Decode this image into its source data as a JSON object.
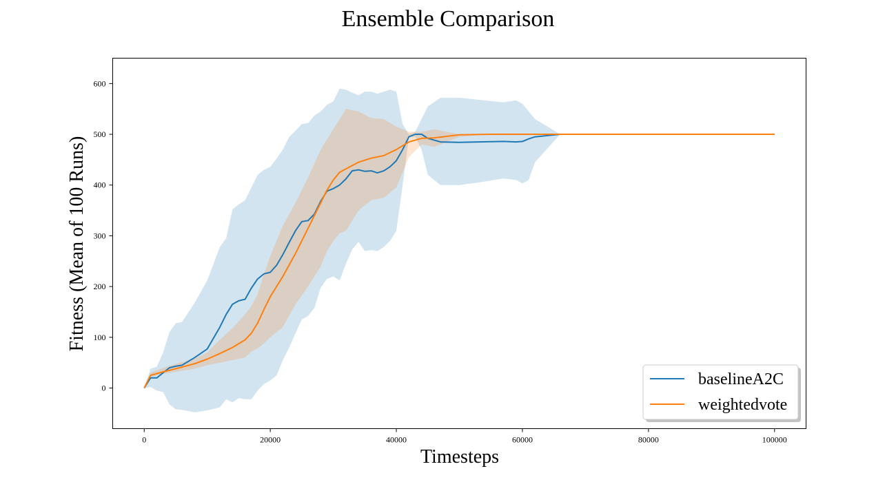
{
  "chart_data": {
    "type": "line",
    "title": "Ensemble Comparison",
    "xlabel": "Timesteps",
    "ylabel": "Fitness (Mean of 100 Runs)",
    "xlim": [
      -5000,
      105000
    ],
    "ylim": [
      -80,
      650
    ],
    "xticks": [
      0,
      20000,
      40000,
      60000,
      80000,
      100000
    ],
    "xtick_labels": [
      "0",
      "20000",
      "40000",
      "60000",
      "80000",
      "100000"
    ],
    "yticks": [
      0,
      100,
      200,
      300,
      400,
      500,
      600
    ],
    "ytick_labels": [
      "0",
      "100",
      "200",
      "300",
      "400",
      "500",
      "600"
    ],
    "grid": false,
    "legend_position": "bottom-right",
    "series": [
      {
        "name": "baselineA2C",
        "color": "#1f77b4",
        "band_color": "#1f77b4",
        "x": [
          0,
          1000,
          2000,
          3000,
          4000,
          5000,
          6000,
          8000,
          10000,
          12000,
          13000,
          14000,
          15000,
          16000,
          17000,
          18000,
          19000,
          20000,
          21000,
          22000,
          23000,
          24000,
          25000,
          26000,
          27000,
          28000,
          29000,
          30000,
          31000,
          32000,
          33000,
          34000,
          35000,
          36000,
          37000,
          38000,
          39000,
          40000,
          41000,
          42000,
          43000,
          44000,
          45000,
          47000,
          50000,
          53000,
          57000,
          59000,
          60000,
          61000,
          62000,
          66000,
          70000,
          80000,
          90000,
          100000
        ],
        "values": [
          0,
          20,
          20,
          30,
          40,
          43,
          45,
          60,
          77,
          120,
          145,
          165,
          172,
          175,
          197,
          215,
          225,
          228,
          242,
          263,
          287,
          310,
          328,
          330,
          343,
          368,
          388,
          393,
          400,
          412,
          428,
          430,
          427,
          428,
          424,
          428,
          436,
          448,
          470,
          495,
          500,
          500,
          492,
          485,
          484,
          485,
          486,
          485,
          486,
          491,
          495,
          500,
          500,
          500,
          500,
          500
        ],
        "upper": [
          0,
          38,
          42,
          70,
          110,
          128,
          130,
          168,
          212,
          278,
          295,
          352,
          362,
          370,
          395,
          420,
          430,
          436,
          452,
          470,
          495,
          507,
          520,
          522,
          537,
          545,
          558,
          565,
          590,
          588,
          582,
          577,
          584,
          584,
          580,
          584,
          588,
          584,
          520,
          500,
          505,
          530,
          555,
          572,
          572,
          568,
          563,
          567,
          560,
          545,
          530,
          500,
          500,
          500,
          500,
          500
        ],
        "lower": [
          0,
          2,
          -5,
          -8,
          -32,
          -42,
          -43,
          -48,
          -44,
          -38,
          -22,
          -28,
          -20,
          -22,
          -22,
          -5,
          8,
          15,
          25,
          55,
          80,
          108,
          135,
          142,
          158,
          198,
          215,
          220,
          212,
          245,
          273,
          288,
          270,
          272,
          270,
          278,
          290,
          310,
          400,
          495,
          495,
          470,
          420,
          400,
          400,
          405,
          413,
          410,
          403,
          410,
          445,
          500,
          500,
          500,
          500,
          500
        ]
      },
      {
        "name": "weightedvote",
        "color": "#ff7f0e",
        "band_color": "#ff7f0e",
        "x": [
          0,
          1000,
          3000,
          5000,
          8000,
          10000,
          12000,
          14000,
          16000,
          17000,
          18000,
          19000,
          20000,
          22000,
          24000,
          26000,
          28000,
          29000,
          30000,
          31000,
          32000,
          34000,
          36000,
          38000,
          40000,
          42000,
          44000,
          46000,
          48000,
          50000,
          55000,
          60000,
          66000,
          70000,
          80000,
          90000,
          100000
        ],
        "values": [
          0,
          25,
          32,
          38,
          48,
          57,
          68,
          80,
          95,
          108,
          128,
          155,
          180,
          220,
          265,
          315,
          365,
          390,
          410,
          425,
          432,
          445,
          453,
          458,
          470,
          485,
          492,
          493,
          496,
          499,
          500,
          500,
          500,
          500,
          500,
          500,
          500
        ],
        "upper": [
          0,
          30,
          40,
          48,
          58,
          70,
          95,
          118,
          145,
          162,
          185,
          225,
          260,
          320,
          365,
          415,
          470,
          490,
          510,
          530,
          550,
          545,
          532,
          530,
          515,
          505,
          505,
          510,
          505,
          500,
          500,
          500,
          500,
          500,
          500,
          500,
          500
        ],
        "lower": [
          0,
          22,
          28,
          32,
          38,
          45,
          50,
          55,
          60,
          72,
          78,
          88,
          100,
          120,
          165,
          200,
          240,
          270,
          290,
          305,
          310,
          350,
          370,
          375,
          395,
          455,
          480,
          475,
          485,
          495,
          500,
          500,
          500,
          500,
          500,
          500,
          500
        ]
      }
    ]
  }
}
